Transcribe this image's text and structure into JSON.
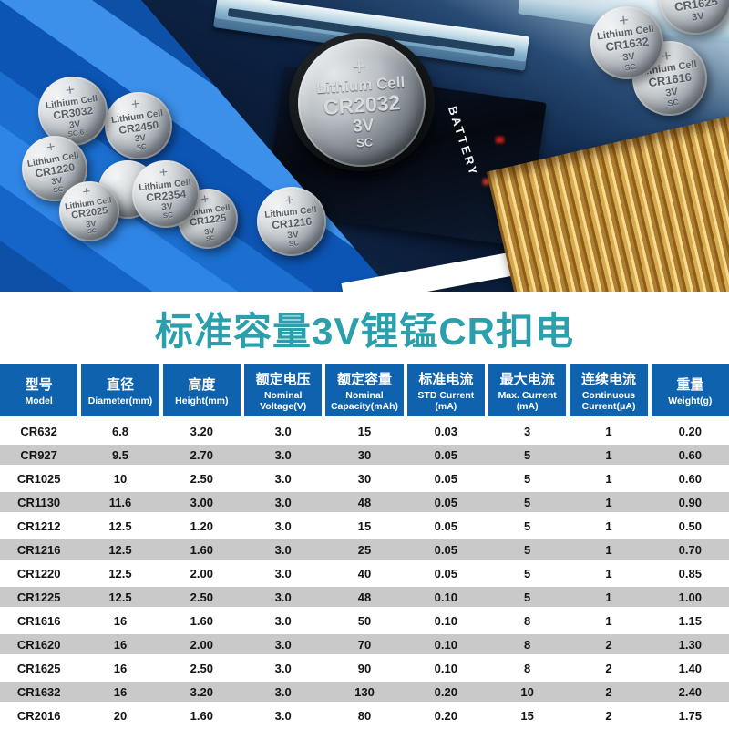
{
  "title": "标准容量3V锂锰CR扣电",
  "hero": {
    "board_label": "BATTERY",
    "battery_brand": "Lithium Cell",
    "batteries": [
      {
        "model": "CR3032",
        "brand": "Lithium Cell",
        "voltage": "3V",
        "code": "SC 6"
      },
      {
        "model": "CR2450",
        "brand": "Lithium Cell",
        "voltage": "3V",
        "code": "SC"
      },
      {
        "model": "CR1220",
        "brand": "Lithium Cell",
        "voltage": "3V",
        "code": "SC"
      },
      {
        "model": "CR2025",
        "brand": "Lithium Cell",
        "voltage": "3V",
        "code": "SC"
      },
      {
        "model": "CR2354",
        "brand": "Lithium Cell",
        "voltage": "3V",
        "code": "SC"
      },
      {
        "model": "CR1225",
        "brand": "Lithium Cell",
        "voltage": "3V",
        "code": "SC"
      },
      {
        "model": "CR1216",
        "brand": "Lithium Cell",
        "voltage": "3V",
        "code": "SC"
      },
      {
        "model": "CR2032",
        "brand": "Lithium Cell",
        "voltage": "3V",
        "code": "SC"
      },
      {
        "model": "CR1625",
        "brand": "Lithium Cell",
        "voltage": "3V",
        "code": ""
      },
      {
        "model": "CR1632",
        "brand": "Lithium Cell",
        "voltage": "3V",
        "code": "SC"
      },
      {
        "model": "CR1616",
        "brand": "Lithium Cell",
        "voltage": "3V",
        "code": "SC"
      }
    ]
  },
  "table": {
    "headers": [
      {
        "zh": "型号",
        "en": "Model"
      },
      {
        "zh": "直径",
        "en": "Diameter(mm)"
      },
      {
        "zh": "高度",
        "en": "Height(mm)"
      },
      {
        "zh": "额定电压",
        "en": "Nominal\nVoltage(V)"
      },
      {
        "zh": "额定容量",
        "en": "Nominal\nCapacity(mAh)"
      },
      {
        "zh": "标准电流",
        "en": "STD Current\n(mA)"
      },
      {
        "zh": "最大电流",
        "en": "Max. Current\n(mA)"
      },
      {
        "zh": "连续电流",
        "en": "Continuous\nCurrent(μA)"
      },
      {
        "zh": "重量",
        "en": "Weight(g)"
      }
    ],
    "rows": [
      [
        "CR632",
        "6.8",
        "3.20",
        "3.0",
        "15",
        "0.03",
        "3",
        "1",
        "0.20"
      ],
      [
        "CR927",
        "9.5",
        "2.70",
        "3.0",
        "30",
        "0.05",
        "5",
        "1",
        "0.60"
      ],
      [
        "CR1025",
        "10",
        "2.50",
        "3.0",
        "30",
        "0.05",
        "5",
        "1",
        "0.60"
      ],
      [
        "CR1130",
        "11.6",
        "3.00",
        "3.0",
        "48",
        "0.05",
        "5",
        "1",
        "0.90"
      ],
      [
        "CR1212",
        "12.5",
        "1.20",
        "3.0",
        "15",
        "0.05",
        "5",
        "1",
        "0.50"
      ],
      [
        "CR1216",
        "12.5",
        "1.60",
        "3.0",
        "25",
        "0.05",
        "5",
        "1",
        "0.70"
      ],
      [
        "CR1220",
        "12.5",
        "2.00",
        "3.0",
        "40",
        "0.05",
        "5",
        "1",
        "0.85"
      ],
      [
        "CR1225",
        "12.5",
        "2.50",
        "3.0",
        "48",
        "0.10",
        "5",
        "1",
        "1.00"
      ],
      [
        "CR1616",
        "16",
        "1.60",
        "3.0",
        "50",
        "0.10",
        "8",
        "1",
        "1.15"
      ],
      [
        "CR1620",
        "16",
        "2.00",
        "3.0",
        "70",
        "0.10",
        "8",
        "2",
        "1.30"
      ],
      [
        "CR1625",
        "16",
        "2.50",
        "3.0",
        "90",
        "0.10",
        "8",
        "2",
        "1.40"
      ],
      [
        "CR1632",
        "16",
        "3.20",
        "3.0",
        "130",
        "0.20",
        "10",
        "2",
        "2.40"
      ],
      [
        "CR2016",
        "20",
        "1.60",
        "3.0",
        "80",
        "0.20",
        "15",
        "2",
        "1.75"
      ]
    ]
  },
  "colors": {
    "header_blue": "#0f63ae",
    "row_gray": "#c9c9c9",
    "title_teal": "#2ba0ac",
    "background_blue": "#1565c8",
    "heatsink_gold": "#d9a94e"
  }
}
